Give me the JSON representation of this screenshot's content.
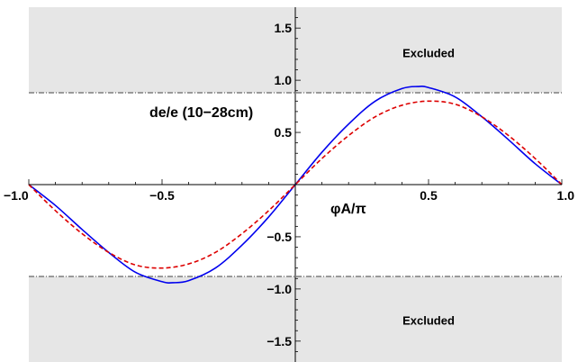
{
  "chart_data": {
    "type": "line",
    "xlabel": "φA/π",
    "ylabel": "de/e (10−28cm)",
    "xlim": [
      -1.0,
      1.0
    ],
    "ylim": [
      -1.7,
      1.7
    ],
    "x_ticks": [
      "−1.0",
      "−0.5",
      "0.5",
      "1.0"
    ],
    "y_ticks": [
      "1.5",
      "1.0",
      "0.5",
      "−0.5",
      "−1.0",
      "−1.5"
    ],
    "x_tick_values": [
      -1.0,
      -0.5,
      0.5,
      1.0
    ],
    "y_tick_values": [
      1.5,
      1.0,
      0.5,
      -0.5,
      -1.0,
      -1.5
    ],
    "excluded_threshold": 0.88,
    "excluded_label": "Excluded",
    "grid": false,
    "series": [
      {
        "style": "solid",
        "color": "#0000ee",
        "x": [
          -1.0,
          -0.9,
          -0.8,
          -0.7,
          -0.6,
          -0.5,
          -0.46,
          -0.4,
          -0.3,
          -0.2,
          -0.1,
          0.0,
          0.1,
          0.2,
          0.3,
          0.4,
          0.46,
          0.5,
          0.6,
          0.7,
          0.8,
          0.9,
          1.0
        ],
        "values": [
          0.0,
          -0.2,
          -0.43,
          -0.65,
          -0.84,
          -0.93,
          -0.94,
          -0.92,
          -0.8,
          -0.58,
          -0.31,
          0.0,
          0.31,
          0.58,
          0.8,
          0.92,
          0.94,
          0.93,
          0.84,
          0.65,
          0.43,
          0.2,
          0.0
        ]
      },
      {
        "style": "dashed",
        "color": "#dd0000",
        "x": [
          -1.0,
          -0.9,
          -0.8,
          -0.7,
          -0.6,
          -0.5,
          -0.4,
          -0.3,
          -0.2,
          -0.1,
          0.0,
          0.1,
          0.2,
          0.3,
          0.4,
          0.5,
          0.6,
          0.7,
          0.8,
          0.9,
          1.0
        ],
        "values": [
          0.0,
          -0.25,
          -0.47,
          -0.65,
          -0.77,
          -0.8,
          -0.76,
          -0.65,
          -0.47,
          -0.25,
          0.0,
          0.25,
          0.47,
          0.65,
          0.76,
          0.8,
          0.77,
          0.65,
          0.47,
          0.25,
          0.0
        ]
      }
    ],
    "colors": {
      "excluded_fill": "#e6e6e6",
      "threshold_line": "#666666",
      "axis": "#000000"
    }
  }
}
